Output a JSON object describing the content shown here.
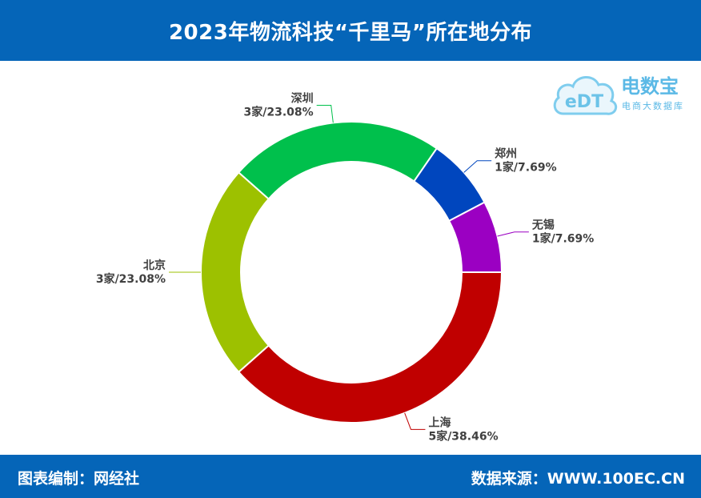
{
  "header": {
    "title": "2023年物流科技“千里马”所在地分布"
  },
  "footer": {
    "left_text": "图表编制：网经社",
    "right_text": "数据来源：WWW.100EC.CN"
  },
  "logo": {
    "brand": "电数宝",
    "sub": "电商大数据库",
    "mark": "eDT"
  },
  "colors": {
    "banner": "#0565b8",
    "上海": "#c00000",
    "北京": "#9dc100",
    "深圳": "#00c04c",
    "郑州": "#0046be",
    "无锡": "#9b00c2"
  },
  "chart_data": {
    "type": "pie",
    "style": "donut",
    "title": "2023年物流科技“千里马”所在地分布",
    "slices": [
      {
        "name": "上海",
        "value": 5,
        "label": "5家/38.46%",
        "percent": 38.46,
        "color": "#c00000"
      },
      {
        "name": "北京",
        "value": 3,
        "label": "3家/23.08%",
        "percent": 23.08,
        "color": "#9dc100"
      },
      {
        "name": "深圳",
        "value": 3,
        "label": "3家/23.08%",
        "percent": 23.08,
        "color": "#00c04c"
      },
      {
        "name": "郑州",
        "value": 1,
        "label": "1家/7.69%",
        "percent": 7.69,
        "color": "#0046be"
      },
      {
        "name": "无锡",
        "value": 1,
        "label": "1家/7.69%",
        "percent": 7.69,
        "color": "#9b00c2"
      }
    ]
  }
}
